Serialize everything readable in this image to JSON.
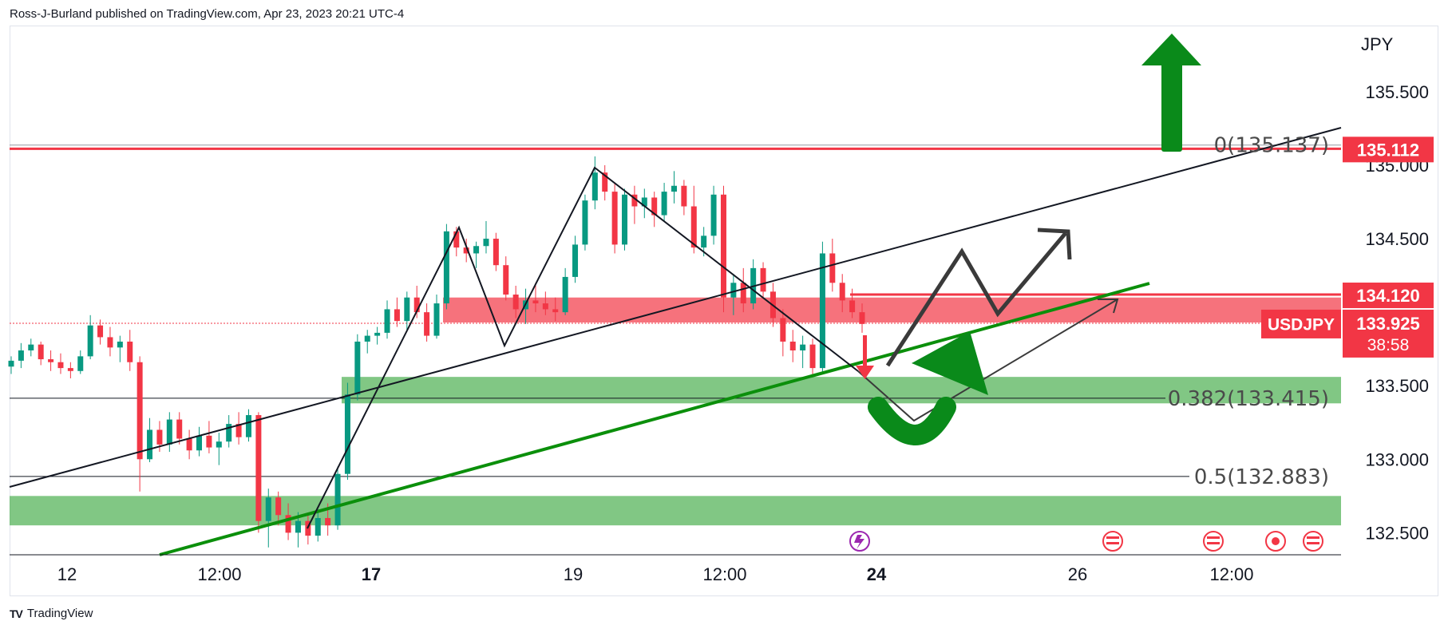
{
  "publisher": "Ross-J-Burland published on TradingView.com, Apr 23, 2023 20:21 UTC-4",
  "footer": {
    "brand": "TradingView",
    "logo_mark": "TV"
  },
  "colors": {
    "up": "#089981",
    "down": "#f23645",
    "green_zone": "#4caf50",
    "red_zone": "#f23645",
    "green_arrow": "#0a8a1a",
    "trend": "#0b8f0b",
    "black": "#131722"
  },
  "chart_data": {
    "type": "candlestick",
    "symbol": "USDJPY",
    "currency": "JPY",
    "ylim": [
      132.35,
      135.95
    ],
    "y_ticks": [
      "135.500",
      "135.000",
      "134.500",
      "133.500",
      "133.000",
      "132.500"
    ],
    "x_ticks": [
      {
        "label": "12",
        "bold": false
      },
      {
        "label": "12:00",
        "bold": false
      },
      {
        "label": "17",
        "bold": true
      },
      {
        "label": "19",
        "bold": false
      },
      {
        "label": "12:00",
        "bold": false
      },
      {
        "label": "24",
        "bold": true
      },
      {
        "label": "26",
        "bold": false
      },
      {
        "label": "12:00",
        "bold": false
      }
    ],
    "price_labels": [
      {
        "text": "135.112",
        "value": 135.112,
        "color": "#f23645"
      },
      {
        "text": "134.120",
        "value": 134.12,
        "color": "#f23645"
      },
      {
        "text": "USDJPY",
        "value": 133.925,
        "color": "#f23645"
      },
      {
        "text": "133.925",
        "value": 133.925,
        "color": "#f23645"
      },
      {
        "text": "38:58",
        "value": 133.925,
        "color": "#f23645"
      }
    ],
    "fib_levels": [
      {
        "text": "0(135.137)",
        "value": 135.137
      },
      {
        "text": "0.382(133.415)",
        "value": 133.415
      },
      {
        "text": "0.5(132.883)",
        "value": 132.883
      }
    ],
    "zones": [
      {
        "kind": "resistance",
        "from": 133.93,
        "to": 134.1
      },
      {
        "kind": "support",
        "from": 133.38,
        "to": 133.56
      },
      {
        "kind": "support",
        "from": 132.55,
        "to": 132.75
      }
    ],
    "horizontal_lines": [
      135.137,
      135.112,
      134.12
    ],
    "last_price": 133.925,
    "candles": [
      [
        133.63,
        133.7,
        133.58,
        133.67
      ],
      [
        133.67,
        133.79,
        133.62,
        133.74
      ],
      [
        133.74,
        133.82,
        133.7,
        133.78
      ],
      [
        133.78,
        133.8,
        133.64,
        133.68
      ],
      [
        133.68,
        133.74,
        133.6,
        133.66
      ],
      [
        133.66,
        133.72,
        133.58,
        133.62
      ],
      [
        133.62,
        133.66,
        133.55,
        133.6
      ],
      [
        133.6,
        133.74,
        133.58,
        133.7
      ],
      [
        133.7,
        133.98,
        133.68,
        133.91
      ],
      [
        133.91,
        133.95,
        133.78,
        133.83
      ],
      [
        133.83,
        133.9,
        133.7,
        133.76
      ],
      [
        133.76,
        133.84,
        133.66,
        133.8
      ],
      [
        133.8,
        133.88,
        133.6,
        133.66
      ],
      [
        133.66,
        133.7,
        132.78,
        133.0
      ],
      [
        133.0,
        133.28,
        132.98,
        133.2
      ],
      [
        133.2,
        133.26,
        133.05,
        133.1
      ],
      [
        133.1,
        133.32,
        133.05,
        133.27
      ],
      [
        133.27,
        133.32,
        133.1,
        133.14
      ],
      [
        133.14,
        133.2,
        133.0,
        133.06
      ],
      [
        133.06,
        133.22,
        133.02,
        133.16
      ],
      [
        133.16,
        133.26,
        133.04,
        133.08
      ],
      [
        133.08,
        133.18,
        132.96,
        133.12
      ],
      [
        133.12,
        133.3,
        133.08,
        133.24
      ],
      [
        133.24,
        133.32,
        133.1,
        133.15
      ],
      [
        133.15,
        133.34,
        133.12,
        133.3
      ],
      [
        133.3,
        133.32,
        132.5,
        132.58
      ],
      [
        132.58,
        132.8,
        132.4,
        132.74
      ],
      [
        132.74,
        132.78,
        132.55,
        132.62
      ],
      [
        132.62,
        132.7,
        132.45,
        132.5
      ],
      [
        132.5,
        132.64,
        132.4,
        132.58
      ],
      [
        132.58,
        132.62,
        132.42,
        132.48
      ],
      [
        132.48,
        132.66,
        132.44,
        132.6
      ],
      [
        132.6,
        132.7,
        132.48,
        132.55
      ],
      [
        132.55,
        132.95,
        132.52,
        132.9
      ],
      [
        132.9,
        133.52,
        132.86,
        133.44
      ],
      [
        133.44,
        133.85,
        133.4,
        133.8
      ],
      [
        133.8,
        133.88,
        133.72,
        133.84
      ],
      [
        133.84,
        133.9,
        133.78,
        133.86
      ],
      [
        133.86,
        134.08,
        133.82,
        134.02
      ],
      [
        134.02,
        134.1,
        133.9,
        133.94
      ],
      [
        133.94,
        134.14,
        133.88,
        134.1
      ],
      [
        134.1,
        134.18,
        133.96,
        134.0
      ],
      [
        134.0,
        134.06,
        133.8,
        133.84
      ],
      [
        133.84,
        134.12,
        133.82,
        134.06
      ],
      [
        134.06,
        134.6,
        134.02,
        134.55
      ],
      [
        134.55,
        134.58,
        134.38,
        134.44
      ],
      [
        134.44,
        134.5,
        134.34,
        134.4
      ],
      [
        134.4,
        134.48,
        134.3,
        134.45
      ],
      [
        134.45,
        134.62,
        134.4,
        134.5
      ],
      [
        134.5,
        134.54,
        134.28,
        134.32
      ],
      [
        134.32,
        134.38,
        134.08,
        134.12
      ],
      [
        134.12,
        134.18,
        133.96,
        134.02
      ],
      [
        134.02,
        134.16,
        133.92,
        134.08
      ],
      [
        134.08,
        134.2,
        134.0,
        134.06
      ],
      [
        134.06,
        134.14,
        133.98,
        134.02
      ],
      [
        134.02,
        134.1,
        133.94,
        134.0
      ],
      [
        134.0,
        134.3,
        133.98,
        134.24
      ],
      [
        134.24,
        134.52,
        134.2,
        134.46
      ],
      [
        134.46,
        134.8,
        134.42,
        134.76
      ],
      [
        134.76,
        135.06,
        134.7,
        134.95
      ],
      [
        134.95,
        135.0,
        134.76,
        134.82
      ],
      [
        134.82,
        134.88,
        134.4,
        134.46
      ],
      [
        134.46,
        134.84,
        134.42,
        134.8
      ],
      [
        134.8,
        134.86,
        134.6,
        134.72
      ],
      [
        134.72,
        134.84,
        134.64,
        134.78
      ],
      [
        134.78,
        134.82,
        134.58,
        134.66
      ],
      [
        134.66,
        134.88,
        134.62,
        134.82
      ],
      [
        134.82,
        134.96,
        134.74,
        134.86
      ],
      [
        134.86,
        134.9,
        134.66,
        134.72
      ],
      [
        134.72,
        134.86,
        134.4,
        134.44
      ],
      [
        134.44,
        134.58,
        134.38,
        134.52
      ],
      [
        134.52,
        134.86,
        134.46,
        134.8
      ],
      [
        134.8,
        134.86,
        134.0,
        134.1
      ],
      [
        134.1,
        134.26,
        133.98,
        134.2
      ],
      [
        134.2,
        134.3,
        134.0,
        134.06
      ],
      [
        134.06,
        134.36,
        134.02,
        134.3
      ],
      [
        134.3,
        134.34,
        134.1,
        134.14
      ],
      [
        134.14,
        134.2,
        133.9,
        133.96
      ],
      [
        133.96,
        134.02,
        133.7,
        133.8
      ],
      [
        133.8,
        133.88,
        133.66,
        133.74
      ],
      [
        133.74,
        133.84,
        133.62,
        133.78
      ],
      [
        133.78,
        133.82,
        133.56,
        133.62
      ],
      [
        133.62,
        134.48,
        133.58,
        134.4
      ],
      [
        134.4,
        134.5,
        134.14,
        134.2
      ],
      [
        134.2,
        134.26,
        134.0,
        134.08
      ],
      [
        134.08,
        134.16,
        133.96,
        134.0
      ],
      [
        134.0,
        134.06,
        133.86,
        133.92
      ]
    ]
  }
}
